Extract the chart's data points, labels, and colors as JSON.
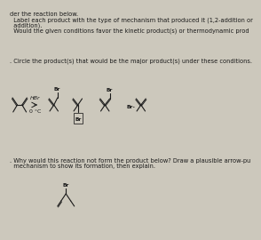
{
  "bg_color": "#ccc8bc",
  "text_color": "#1a1a1a",
  "line1": "der the reaction below.",
  "line2": "  Label each product with the type of mechanism that produced it (1,2-addition or",
  "line3": "  addition).",
  "line4": "  Would the given conditions favor the kinetic product(s) or thermodynamic prod",
  "circle_line": ". Circle the product(s) that would be the major product(s) under these conditions.",
  "why_line1": ". Why would this reaction not form the product below? Draw a plausible arrow-pu",
  "why_line2": "  mechanism to show its formation, then explain.",
  "reagent": "HBr",
  "temp": "0 °C",
  "br": "Br",
  "br_dash": "Br-"
}
